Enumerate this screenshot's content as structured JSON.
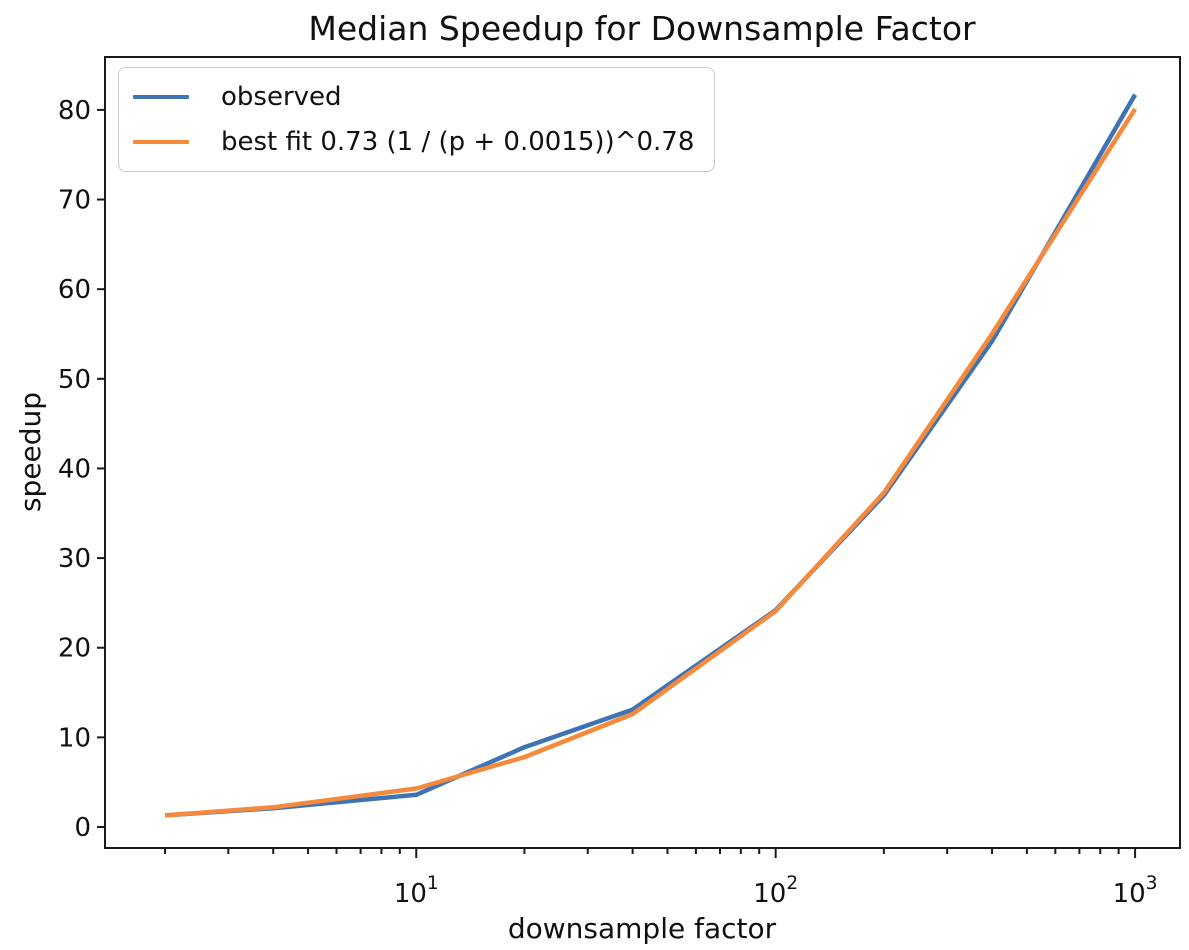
{
  "chart_data": {
    "type": "line",
    "title": "Median Speedup for Downsample Factor",
    "xlabel": "downsample factor",
    "ylabel": "speedup",
    "x_scale": "log",
    "grid": false,
    "x": [
      2,
      4,
      10,
      20,
      40,
      100,
      200,
      400,
      1000
    ],
    "series": [
      {
        "name": "observed",
        "color": "#3e74b4",
        "values": [
          1.3,
          2.1,
          3.6,
          8.9,
          13.1,
          24.2,
          37.0,
          54.2,
          81.7
        ]
      },
      {
        "name": "best fit 0.73 (1 / (p + 0.0015))^0.78",
        "color": "#f5893c",
        "values": [
          1.3,
          2.2,
          4.3,
          7.8,
          12.6,
          24.1,
          37.3,
          55.0,
          80.1
        ]
      }
    ],
    "legend": {
      "position": "upper left",
      "entries": [
        "observed",
        "best fit 0.73 (1 / (p + 0.0015))^0.78"
      ]
    },
    "xlim_log": [
      0.134,
      3.125
    ],
    "ylim": [
      -2.34,
      85.9
    ],
    "yticks": [
      0,
      10,
      20,
      30,
      40,
      50,
      60,
      70,
      80
    ],
    "xticks_major": [
      {
        "value": 10,
        "base": "10",
        "sup": "1"
      },
      {
        "value": 100,
        "base": "10",
        "sup": "2"
      },
      {
        "value": 1000,
        "base": "10",
        "sup": "3"
      }
    ],
    "xticks_minor": [
      2,
      3,
      4,
      5,
      6,
      7,
      8,
      9,
      20,
      30,
      40,
      50,
      60,
      70,
      80,
      90,
      200,
      300,
      400,
      500,
      600,
      700,
      800,
      900
    ]
  }
}
